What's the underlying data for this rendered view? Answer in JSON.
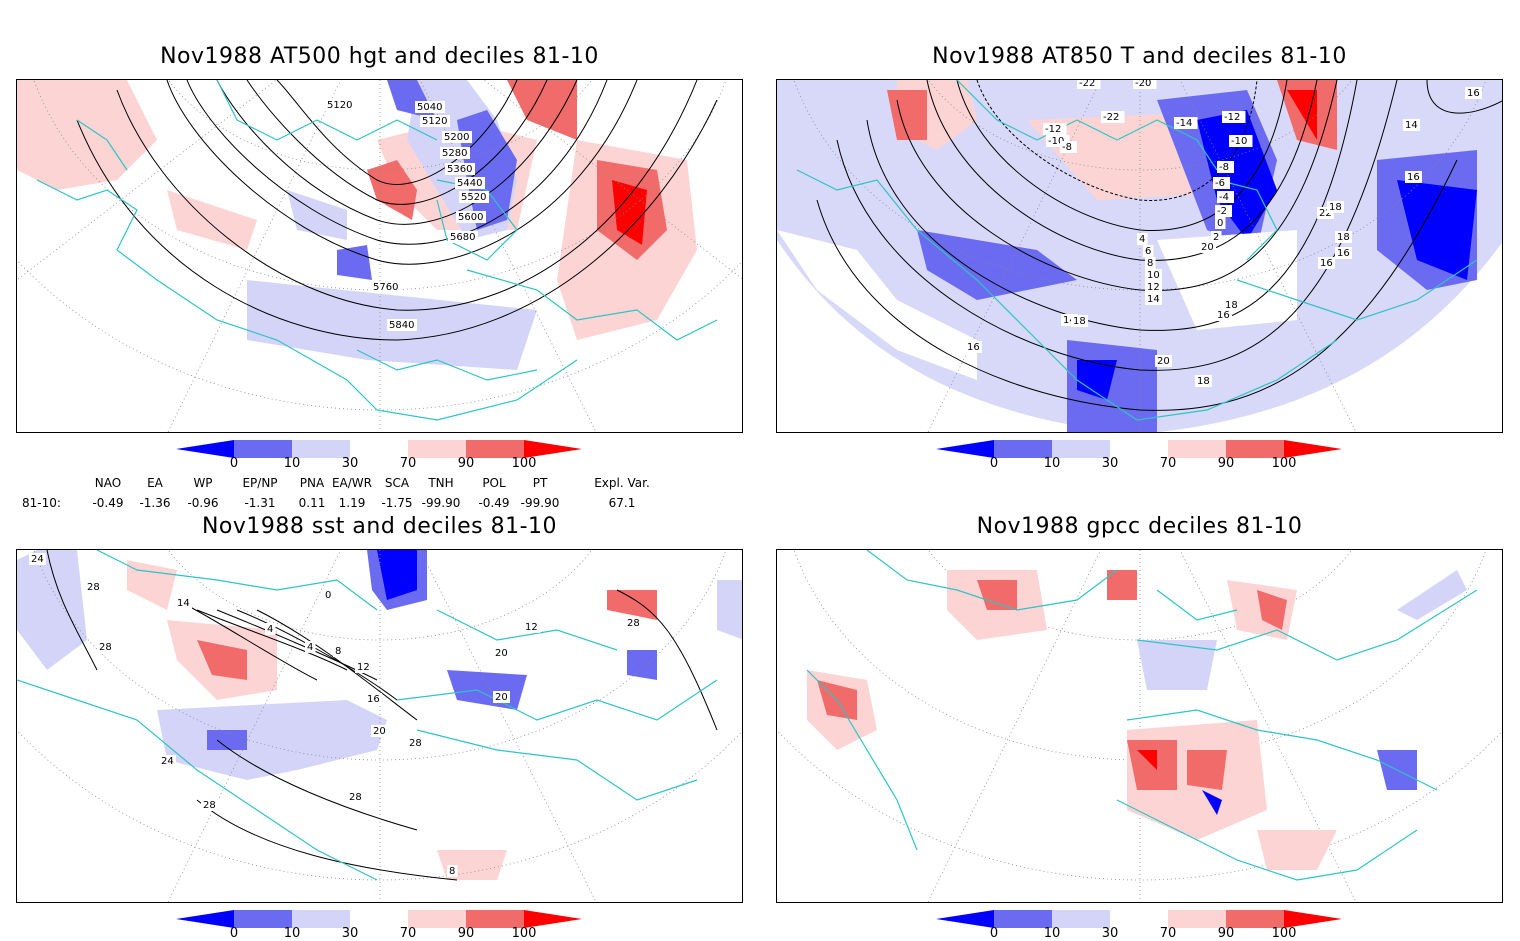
{
  "panels": [
    {
      "title": "Nov1988 AT500 hgt and deciles 81-10",
      "contour_labels": [
        "5120",
        "5040",
        "5120",
        "5200",
        "5280",
        "5360",
        "5440",
        "5520",
        "5600",
        "5680",
        "5760",
        "5840"
      ]
    },
    {
      "title": "Nov1988 AT850 T and deciles 81-10",
      "contour_labels": [
        "-22",
        "-20",
        "-22",
        "-12",
        "-10",
        "-8",
        "-14",
        "-12",
        "-10",
        "-8",
        "-6",
        "-4",
        "-2",
        "0",
        "2",
        "4",
        "6",
        "8",
        "10",
        "12",
        "14",
        "16",
        "18",
        "20",
        "22",
        "16",
        "16",
        "14",
        "18",
        "18",
        "16",
        "16",
        "14",
        "18",
        "20",
        "18",
        "16"
      ]
    },
    {
      "title": "Nov1988 sst and deciles 81-10",
      "contour_labels": [
        "24",
        "28",
        "14",
        "28",
        "0",
        "4",
        "4",
        "8",
        "12",
        "16",
        "20",
        "28",
        "24",
        "28",
        "28",
        "8",
        "12",
        "20",
        "20",
        "28"
      ]
    },
    {
      "title": "Nov1988 gpcc deciles 81-10",
      "contour_labels": []
    }
  ],
  "colorbar": {
    "ticks": [
      "0",
      "10",
      "30",
      "70",
      "90",
      "100"
    ],
    "colors": [
      "#0000ff",
      "#6b6bf2",
      "#d4d4f8",
      "#ffffff",
      "#fdd4d4",
      "#f26b6b",
      "#ff0000"
    ]
  },
  "indices": {
    "headers": [
      "NAO",
      "EA",
      "WP",
      "EP/NP",
      "PNA",
      "EA/WR",
      "SCA",
      "TNH",
      "POL",
      "PT",
      "Expl. Var."
    ],
    "row_label": "81-10:",
    "values": [
      "-0.49",
      "-1.36",
      "-0.96",
      "-1.31",
      "0.11",
      "1.19",
      "-1.75",
      "-99.90",
      "-0.49",
      "-99.90",
      "67.1"
    ]
  },
  "style": {
    "coast_color": "#2ec4c4",
    "grid_color": "#888888"
  }
}
